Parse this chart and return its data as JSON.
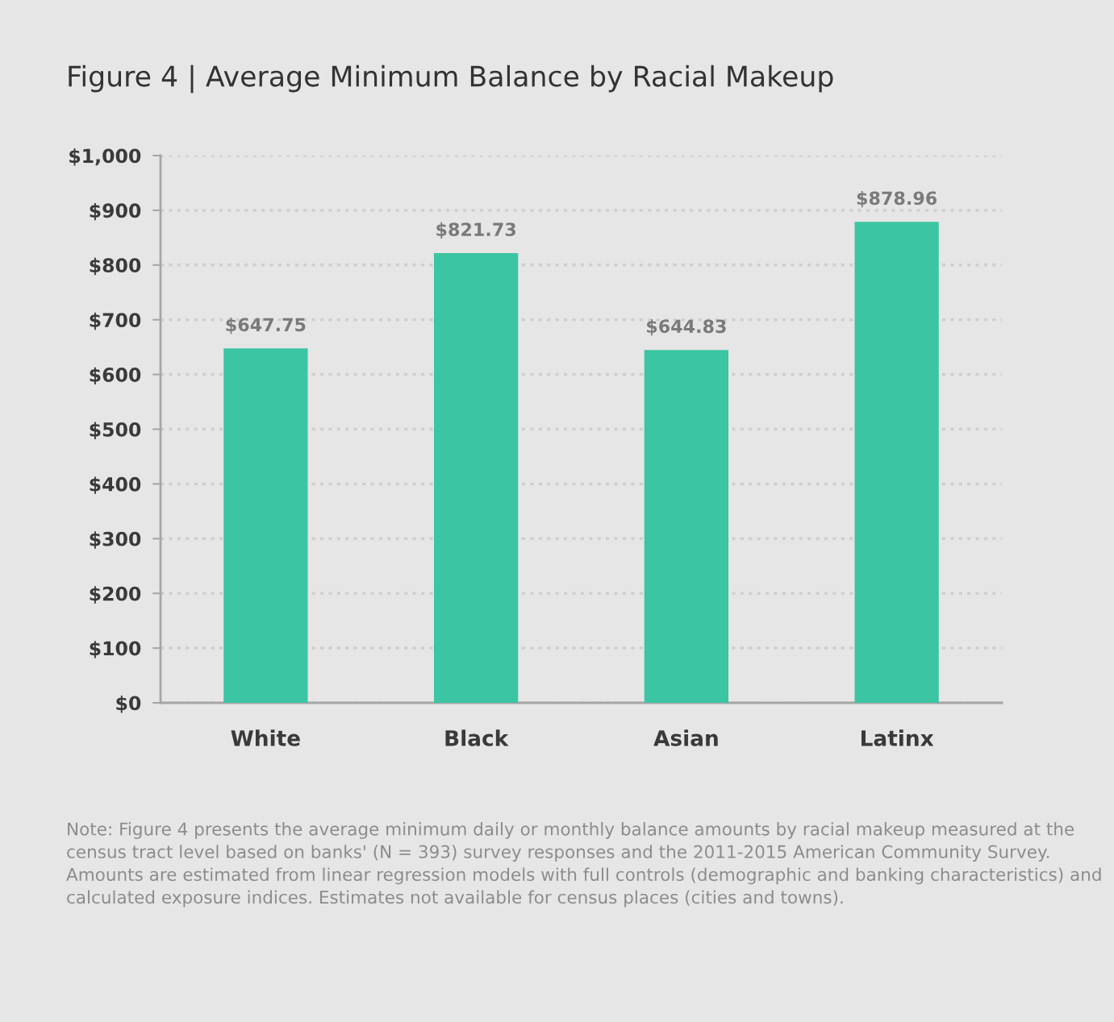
{
  "chart_data": {
    "type": "bar",
    "title": "Figure 4 | Average Minimum Balance by Racial Makeup",
    "categories": [
      "White",
      "Black",
      "Asian",
      "Latinx"
    ],
    "values": [
      647.75,
      821.73,
      644.83,
      878.96
    ],
    "value_labels": [
      "$647.75",
      "$821.73",
      "$644.83",
      "$878.96"
    ],
    "color": "#3cc5a2",
    "ylim": [
      0,
      1000
    ],
    "yticks": [
      {
        "value": 0,
        "label": "$0"
      },
      {
        "value": 100,
        "label": "$100"
      },
      {
        "value": 200,
        "label": "$200"
      },
      {
        "value": 300,
        "label": "$300"
      },
      {
        "value": 400,
        "label": "$400"
      },
      {
        "value": 500,
        "label": "$500"
      },
      {
        "value": 600,
        "label": "$600"
      },
      {
        "value": 700,
        "label": "$700"
      },
      {
        "value": 800,
        "label": "$800"
      },
      {
        "value": 900,
        "label": "$900"
      },
      {
        "value": 1000,
        "label": "$1,000"
      }
    ],
    "grid": "y",
    "annotations": [
      "Note: Figure 4 presents the average minimum daily or monthly balance amounts by racial makeup measured at the census tract level based on banks' (N = 393) survey responses and the 2011-2015 American Community Survey. Amounts are estimated from linear regression models with full controls (demographic and banking characteristics) and calculated exposure indices. Estimates not available for census places (cities and towns)."
    ]
  }
}
